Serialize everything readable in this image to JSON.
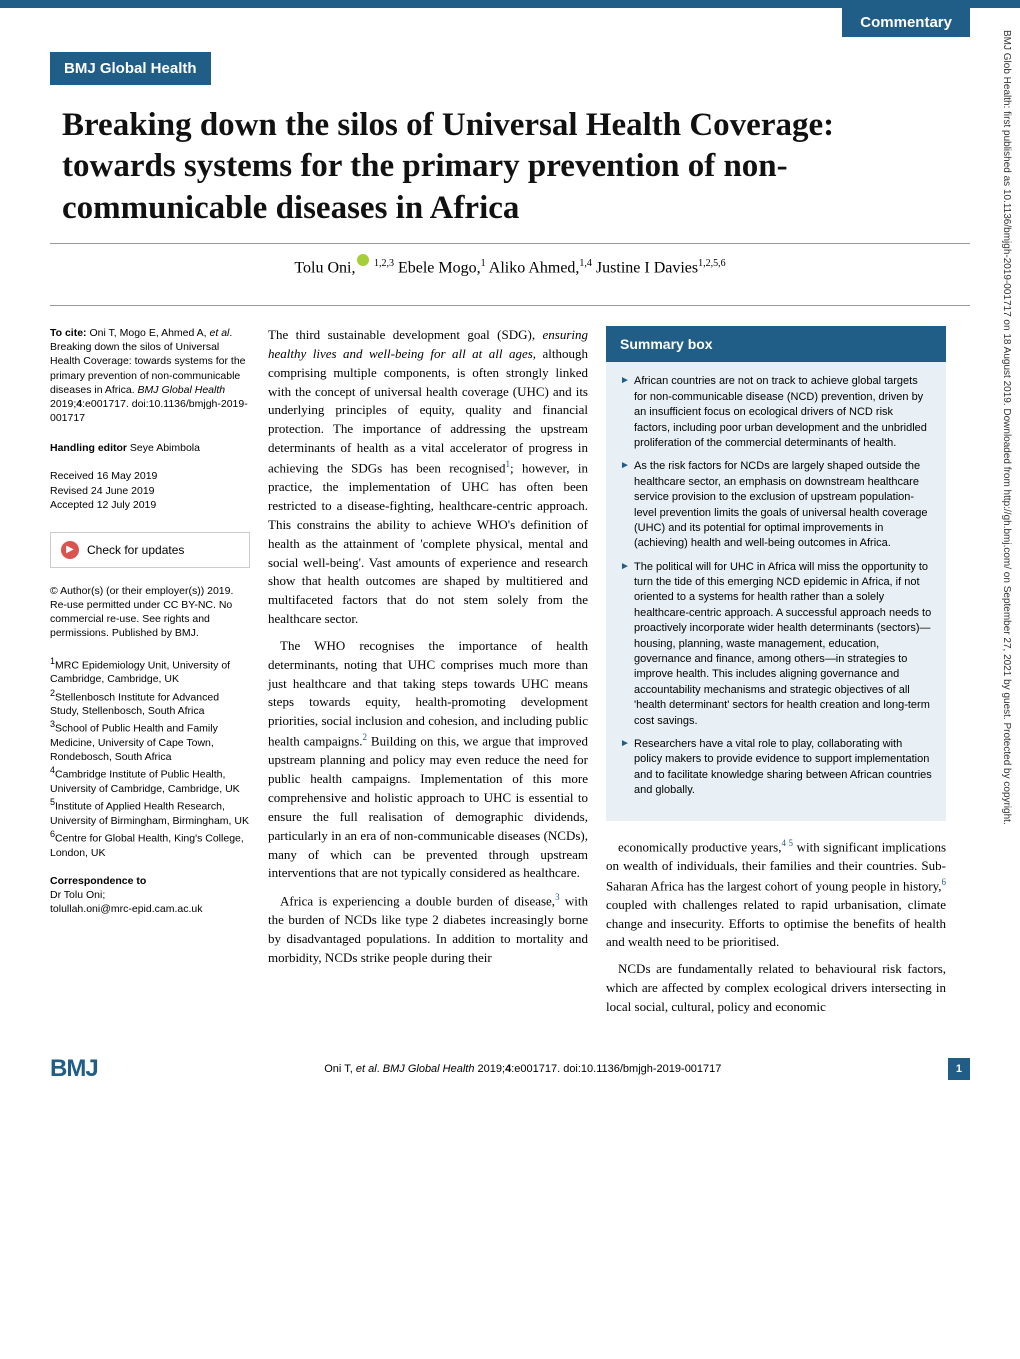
{
  "colors": {
    "brand": "#205d87",
    "summary_bg": "#e8f0f5",
    "orcid": "#a6ce39",
    "crossmark": "#d9534f"
  },
  "section_label": "Commentary",
  "journal_label": "BMJ Global Health",
  "title": "Breaking down the silos of Universal Health Coverage: towards systems for the primary prevention of non-communicable diseases in Africa",
  "authors_html": "Tolu Oni,<span class='orcid'></span><sup> 1,2,3</sup> Ebele Mogo,<sup>1</sup> Aliko Ahmed,<sup>1,4</sup> Justine I Davies<sup>1,2,5,6</sup>",
  "sidebar": {
    "cite_label": "To cite:",
    "cite_text": "Oni T, Mogo E, Ahmed A, <span class='em'>et al</span>. Breaking down the silos of Universal Health Coverage: towards systems for the primary prevention of non-communicable diseases in Africa. <span class='em'>BMJ Global Health</span> 2019;<b>4</b>:e001717. doi:10.1136/bmjgh-2019-001717",
    "handling_label": "Handling editor",
    "handling_name": "Seye Abimbola",
    "dates": [
      "Received 16 May 2019",
      "Revised 24 June 2019",
      "Accepted 12 July 2019"
    ],
    "check_updates": "Check for updates",
    "license": "© Author(s) (or their employer(s)) 2019. Re-use permitted under CC BY-NC. No commercial re-use. See rights and permissions. Published by BMJ.",
    "affiliations": [
      "<sup>1</sup>MRC Epidemiology Unit, University of Cambridge, Cambridge, UK",
      "<sup>2</sup>Stellenbosch Institute for Advanced Study, Stellenbosch, South Africa",
      "<sup>3</sup>School of Public Health and Family Medicine, University of Cape Town, Rondebosch, South Africa",
      "<sup>4</sup>Cambridge Institute of Public Health, University of Cambridge, Cambridge, UK",
      "<sup>5</sup>Institute of Applied Health Research, University of Birmingham, Birmingham, UK",
      "<sup>6</sup>Centre for Global Health, King's College, London, UK"
    ],
    "corr_label": "Correspondence to",
    "corr_text": "Dr Tolu Oni;<br>tolullah.oni@mrc-epid.cam.ac.uk"
  },
  "main": {
    "p1": "The third sustainable development goal (SDG), <span class='em'>ensuring healthy lives and well-being for all at all ages,</span> although comprising multiple components, is often strongly linked with the concept of universal health coverage (UHC) and its underlying principles of equity, quality and financial protection. The importance of addressing the upstream determinants of health as a vital accelerator of progress in achieving the SDGs has been recognised<sup>1</sup>; however, in practice, the implementation of UHC has often been restricted to a disease-fighting, healthcare-centric approach. This constrains the ability to achieve WHO's definition of health as the attainment of 'complete physical, mental and social well-being'. Vast amounts of experience and research show that health outcomes are shaped by multitiered and multifaceted factors that do not stem solely from the healthcare sector.",
    "p2": "The WHO recognises the importance of health determinants, noting that UHC comprises much more than just healthcare and that taking steps towards UHC means steps towards equity, health-promoting development priorities, social inclusion and cohesion, and including public health campaigns.<sup>2</sup> Building on this, we argue that improved upstream planning and policy may even reduce the need for public health campaigns. Implementation of this more comprehensive and holistic approach to UHC is essential to ensure the full realisation of demographic dividends, particularly in an era of non-communicable diseases (NCDs), many of which can be prevented through upstream interventions that are not typically considered as healthcare.",
    "p3": "Africa is experiencing a double burden of disease,<sup>3</sup> with the burden of NCDs like type 2 diabetes increasingly borne by disadvantaged populations. In addition to mortality and morbidity, NCDs strike people during their"
  },
  "summary": {
    "heading": "Summary box",
    "bullets": [
      "African countries are not on track to achieve global targets for non-communicable disease (NCD) prevention, driven by an insufficient focus on ecological drivers of NCD risk factors, including poor urban development and the unbridled proliferation of the commercial determinants of health.",
      "As the risk factors for NCDs are largely shaped outside the healthcare sector, an emphasis on downstream healthcare service provision to the exclusion of upstream population-level prevention limits the goals of universal health coverage (UHC) and its potential for optimal improvements in (achieving) health and well-being outcomes in Africa.",
      "The political will for UHC in Africa will miss the opportunity to turn the tide of this emerging NCD epidemic in Africa, if not oriented to a systems for health rather than a solely healthcare-centric approach. A successful approach needs to proactively incorporate wider health determinants (sectors)—housing, planning, waste management, education, governance and finance, among others—in strategies to improve health. This includes aligning governance and accountability mechanisms and strategic objectives of all 'health determinant' sectors for health creation and long-term cost savings.",
      "Researchers have a vital role to play, collaborating with policy makers to provide evidence to support implementation and to facilitate knowledge sharing between African countries and globally."
    ]
  },
  "right": {
    "p1": "economically productive years,<sup>4 5</sup> with significant implications on wealth of individuals, their families and their countries. Sub-Saharan Africa has the largest cohort of young people in history,<sup>6</sup> coupled with challenges related to rapid urbanisation, climate change and insecurity. Efforts to optimise the benefits of health and wealth need to be prioritised.",
    "p2": "NCDs are fundamentally related to behavioural risk factors, which are affected by complex ecological drivers intersecting in local social, cultural, policy and economic"
  },
  "footer": {
    "logo": "BMJ",
    "cite": "Oni T, <span class='em'>et al</span>. <span class='em'>BMJ Global Health</span> 2019;<b>4</b>:e001717. doi:10.1136/bmjgh-2019-001717",
    "page": "1"
  },
  "gutter": "BMJ Glob Health: first published as 10.1136/bmjgh-2019-001717 on 18 August 2019. Downloaded from http://gh.bmj.com/ on September 27, 2021 by guest. Protected by copyright."
}
